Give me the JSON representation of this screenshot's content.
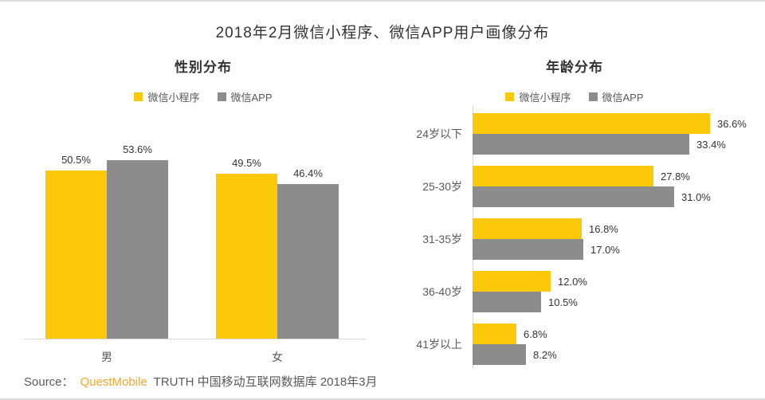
{
  "window": {
    "title": "2018年2月微信小程序、微信APP用户画像分布"
  },
  "colors": {
    "miniprogram_yellow": "#FCC80A",
    "app_gray": "#8C8C8C",
    "brand_orange": "#F5A62F",
    "title_text": "#333333",
    "muted_text": "#595959"
  },
  "source": {
    "prefix": "Source：",
    "brand": "QuestMobile",
    "suffix": "TRUTH 中国移动互联网数据库 2018年3月"
  },
  "chart_data": [
    {
      "type": "bar",
      "orientation": "vertical",
      "title": "性别分布",
      "categories": [
        "男",
        "女"
      ],
      "series": [
        {
          "name": "微信小程序",
          "color": "#FCC80A",
          "values": [
            50.5,
            49.5
          ],
          "labels": [
            "50.5%",
            "49.5%"
          ]
        },
        {
          "name": "微信APP",
          "color": "#8C8C8C",
          "values": [
            53.6,
            46.4
          ],
          "labels": [
            "53.6%",
            "46.4%"
          ]
        }
      ],
      "unit": "%",
      "ylim": [
        0,
        56
      ],
      "legend_position": "top",
      "grid": false,
      "value_labels": "above bars"
    },
    {
      "type": "bar",
      "orientation": "horizontal",
      "title": "年龄分布",
      "categories": [
        "24岁以下",
        "25-30岁",
        "31-35岁",
        "36-40岁",
        "41岁以上"
      ],
      "series": [
        {
          "name": "微信小程序",
          "color": "#FCC80A",
          "values": [
            36.6,
            27.8,
            16.8,
            12.0,
            6.8
          ],
          "labels": [
            "36.6%",
            "27.8%",
            "16.8%",
            "12.0%",
            "6.8%"
          ]
        },
        {
          "name": "微信APP",
          "color": "#8C8C8C",
          "values": [
            33.4,
            31.0,
            17.0,
            10.5,
            8.2
          ],
          "labels": [
            "33.4%",
            "31.0%",
            "17.0%",
            "10.5%",
            "8.2%"
          ]
        }
      ],
      "unit": "%",
      "xlim": [
        0,
        40
      ],
      "legend_position": "top",
      "grid": false,
      "value_labels": "right of bars"
    }
  ]
}
